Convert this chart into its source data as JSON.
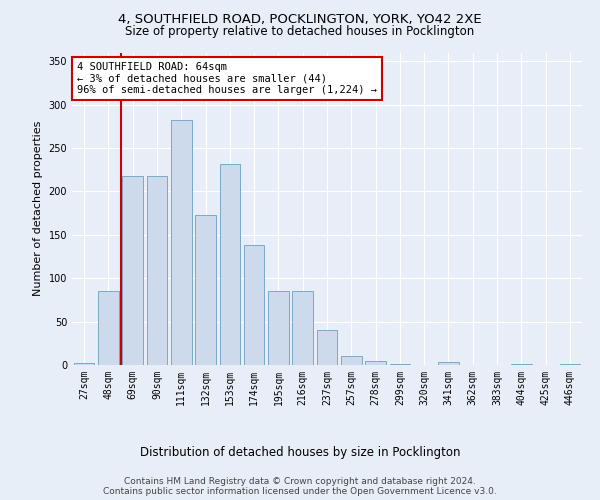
{
  "title_line1": "4, SOUTHFIELD ROAD, POCKLINGTON, YORK, YO42 2XE",
  "title_line2": "Size of property relative to detached houses in Pocklington",
  "xlabel": "Distribution of detached houses by size in Pocklington",
  "ylabel": "Number of detached properties",
  "categories": [
    "27sqm",
    "48sqm",
    "69sqm",
    "90sqm",
    "111sqm",
    "132sqm",
    "153sqm",
    "174sqm",
    "195sqm",
    "216sqm",
    "237sqm",
    "257sqm",
    "278sqm",
    "299sqm",
    "320sqm",
    "341sqm",
    "362sqm",
    "383sqm",
    "404sqm",
    "425sqm",
    "446sqm"
  ],
  "values": [
    2,
    85,
    218,
    218,
    282,
    173,
    232,
    138,
    85,
    85,
    40,
    10,
    5,
    1,
    0,
    3,
    0,
    0,
    1,
    0,
    1
  ],
  "bar_color": "#ccdaeb",
  "bar_edge_color": "#6a9fc0",
  "vline_color": "#cc0000",
  "annotation_text": "4 SOUTHFIELD ROAD: 64sqm\n← 3% of detached houses are smaller (44)\n96% of semi-detached houses are larger (1,224) →",
  "annotation_box_color": "#ffffff",
  "annotation_box_edge_color": "#cc0000",
  "ylim": [
    0,
    360
  ],
  "yticks": [
    0,
    50,
    100,
    150,
    200,
    250,
    300,
    350
  ],
  "background_color": "#e8eef8",
  "plot_background_color": "#e8eef8",
  "footer_line1": "Contains HM Land Registry data © Crown copyright and database right 2024.",
  "footer_line2": "Contains public sector information licensed under the Open Government Licence v3.0.",
  "title_fontsize": 9.5,
  "subtitle_fontsize": 8.5,
  "ylabel_fontsize": 8,
  "xlabel_fontsize": 8.5,
  "tick_fontsize": 7,
  "annotation_fontsize": 7.5,
  "footer_fontsize": 6.5
}
